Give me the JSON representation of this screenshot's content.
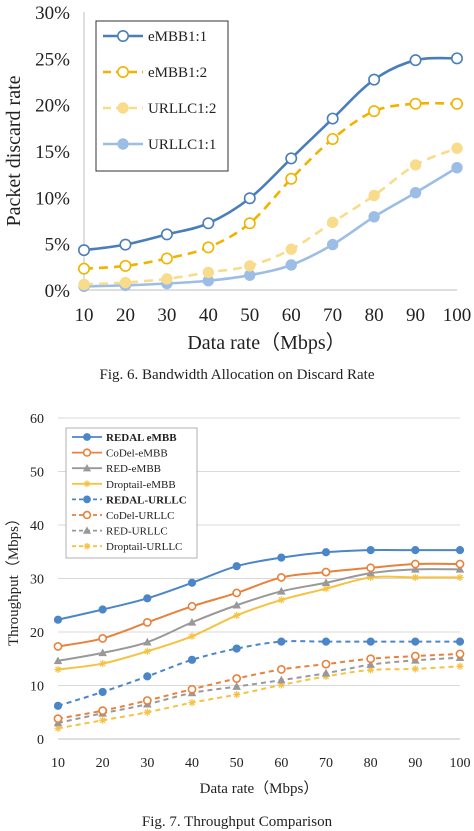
{
  "chart_data": [
    {
      "type": "line",
      "xlabel": "Data rate（Mbps）",
      "ylabel": "Packet discard rate",
      "caption": "Fig. 6.  Bandwidth Allocation on Discard Rate",
      "x": [
        10,
        20,
        30,
        40,
        50,
        60,
        70,
        80,
        90,
        100
      ],
      "xlim": [
        10,
        100
      ],
      "ylim": [
        0,
        30
      ],
      "y_unit": "%",
      "y_ticks": [
        0,
        5,
        10,
        15,
        20,
        25,
        30
      ],
      "legend_position": "top-left",
      "grid": false,
      "series": [
        {
          "name": "eMBB1:1",
          "values": [
            4.3,
            4.9,
            6.0,
            7.2,
            9.9,
            14.2,
            18.5,
            22.7,
            24.8,
            25.0
          ],
          "color": "#4a7ebb",
          "dashed": false,
          "marker": "open-circle"
        },
        {
          "name": "eMBB1:2",
          "values": [
            2.3,
            2.6,
            3.4,
            4.6,
            7.2,
            12.0,
            16.3,
            19.3,
            20.1,
            20.1
          ],
          "color": "#f0b400",
          "dashed": true,
          "marker": "open-circle"
        },
        {
          "name": "URLLC1:2",
          "values": [
            0.6,
            0.8,
            1.2,
            1.9,
            2.6,
            4.4,
            7.3,
            10.2,
            13.5,
            15.3
          ],
          "color": "#f8dc8c",
          "dashed": true,
          "marker": "filled-circle"
        },
        {
          "name": "URLLC1:1",
          "values": [
            0.4,
            0.5,
            0.7,
            1.0,
            1.6,
            2.7,
            4.9,
            7.9,
            10.5,
            13.2
          ],
          "color": "#9cbee6",
          "dashed": false,
          "marker": "filled-circle"
        }
      ]
    },
    {
      "type": "line",
      "xlabel": "Data rate（Mbps）",
      "ylabel": "Throughput（Mbps）",
      "caption": "Fig. 7.  Throughput Comparison",
      "x": [
        10,
        20,
        30,
        40,
        50,
        60,
        70,
        80,
        90,
        100
      ],
      "xlim": [
        10,
        100
      ],
      "ylim": [
        0,
        60
      ],
      "y_ticks": [
        0,
        10,
        20,
        30,
        40,
        50,
        60
      ],
      "legend_position": "top-left",
      "grid": true,
      "series": [
        {
          "name": "REDAL eMBB",
          "values": [
            22.3,
            24.2,
            26.3,
            29.2,
            32.3,
            33.9,
            34.9,
            35.3,
            35.3,
            35.3
          ],
          "color": "#4a86c8",
          "dashed": false,
          "marker": "filled-circle",
          "bold": true
        },
        {
          "name": "CoDel-eMBB",
          "values": [
            17.3,
            18.8,
            21.8,
            24.8,
            27.3,
            30.2,
            31.2,
            32.0,
            32.7,
            32.7
          ],
          "color": "#e8813c",
          "dashed": false,
          "marker": "open-circle"
        },
        {
          "name": "RED-eMBB",
          "values": [
            14.6,
            16.1,
            18.1,
            21.8,
            25.0,
            27.6,
            29.2,
            31.0,
            31.7,
            31.7
          ],
          "color": "#999999",
          "dashed": false,
          "marker": "triangle"
        },
        {
          "name": "Droptail-eMBB",
          "values": [
            13.0,
            14.1,
            16.4,
            19.2,
            23.1,
            26.0,
            28.1,
            30.2,
            30.2,
            30.2
          ],
          "color": "#f5c242",
          "dashed": false,
          "marker": "star"
        },
        {
          "name": "REDAL-URLLC",
          "values": [
            6.2,
            8.8,
            11.7,
            14.8,
            16.9,
            18.2,
            18.2,
            18.2,
            18.2,
            18.2
          ],
          "color": "#4a86c8",
          "dashed": true,
          "marker": "filled-circle",
          "bold": true
        },
        {
          "name": "CoDel-URLLC",
          "values": [
            3.8,
            5.3,
            7.2,
            9.3,
            11.3,
            13.0,
            14.0,
            15.0,
            15.5,
            15.9
          ],
          "color": "#e8813c",
          "dashed": true,
          "marker": "open-circle"
        },
        {
          "name": "RED-URLLC",
          "values": [
            3.0,
            4.8,
            6.5,
            8.6,
            9.8,
            11.0,
            12.3,
            13.9,
            14.7,
            15.2
          ],
          "color": "#999999",
          "dashed": true,
          "marker": "triangle"
        },
        {
          "name": "Droptail-URLLC",
          "values": [
            2.0,
            3.5,
            5.0,
            6.8,
            8.3,
            10.1,
            11.7,
            12.9,
            13.1,
            13.6
          ],
          "color": "#f5c242",
          "dashed": true,
          "marker": "star"
        }
      ]
    }
  ]
}
